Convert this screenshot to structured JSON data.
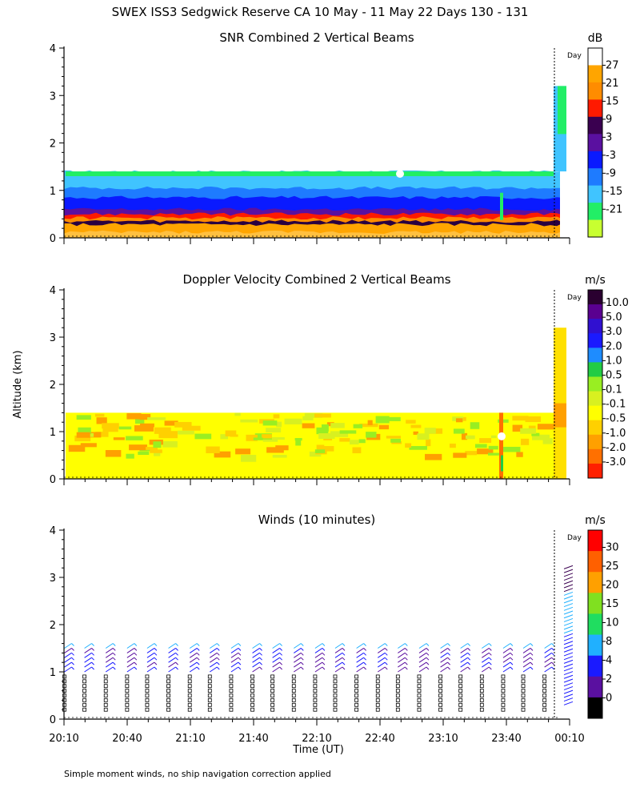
{
  "page": {
    "title": "SWEX ISS3 Sedgwick Reserve CA  10 May - 11 May 22 Days 130 - 131",
    "ylabel": "Altitude (km)",
    "xlabel": "Time (UT)",
    "footnote": "Simple moment winds, no ship navigation correction applied",
    "day_marker_label": "Day",
    "x_ticks": [
      "20:10",
      "20:40",
      "21:10",
      "21:40",
      "22:10",
      "22:40",
      "23:10",
      "23:40",
      "00:10"
    ],
    "y_ticks": [
      "0",
      "1",
      "2",
      "3",
      "4"
    ]
  },
  "chart_data": [
    {
      "type": "heatmap",
      "title": "SNR Combined 2 Vertical Beams",
      "colorbar_unit": "dB",
      "colorbar_labels": [
        "27",
        "21",
        "15",
        "9",
        "3",
        "-3",
        "-9",
        "-15",
        "-21"
      ],
      "colorbar_colors": [
        "#ffffff",
        "#ffa500",
        "#ff8c00",
        "#ff1a00",
        "#3a0050",
        "#5a10a0",
        "#0a1aff",
        "#1e7bff",
        "#40c4ff",
        "#22ee66",
        "#c8ff30"
      ],
      "xlim_hours": [
        20.1667,
        24.2
      ],
      "ylim_km": [
        0,
        4
      ],
      "data_top_km": 1.4,
      "layers_km": [
        {
          "top": 1.4,
          "color": "#40c4ff"
        },
        {
          "top": 1.05,
          "color": "#1e7bff"
        },
        {
          "top": 0.85,
          "color": "#0a1aff"
        },
        {
          "top": 0.6,
          "color": "#5a10a0"
        },
        {
          "top": 0.5,
          "color": "#ff1a00"
        },
        {
          "top": 0.42,
          "color": "#ff8c00"
        },
        {
          "top": 0.35,
          "color": "#2a0040"
        },
        {
          "top": 0.28,
          "color": "#ffa500"
        },
        {
          "top": 0.12,
          "color": "#ffc040"
        }
      ]
    },
    {
      "type": "heatmap",
      "title": "Doppler Velocity Combined 2 Vertical Beams",
      "colorbar_unit": "m/s",
      "colorbar_labels": [
        "10.0",
        "5.0",
        "3.0",
        "2.0",
        "1.0",
        "0.5",
        "0.1",
        "-0.1",
        "-0.5",
        "-1.0",
        "-2.0",
        "-3.0"
      ],
      "colorbar_colors": [
        "#2a0030",
        "#5a0090",
        "#3010d0",
        "#1a1aff",
        "#1e8cff",
        "#22cc44",
        "#99ee22",
        "#d8f020",
        "#ffff00",
        "#ffd000",
        "#ffa000",
        "#ff7000",
        "#ff2000"
      ],
      "xlim_hours": [
        20.1667,
        24.2
      ],
      "ylim_km": [
        0,
        4
      ],
      "data_top_km": 1.4,
      "base_value": "-0.1"
    },
    {
      "type": "scatter",
      "title": "Winds (10 minutes)",
      "colorbar_unit": "m/s",
      "colorbar_labels": [
        "30",
        "25",
        "20",
        "15",
        "10",
        "8",
        "4",
        "2",
        "0"
      ],
      "colorbar_colors": [
        "#ff0000",
        "#ff6000",
        "#ffa000",
        "#80e020",
        "#20dd60",
        "#20b0ff",
        "#1a1aff",
        "#5a10a0",
        "#000000"
      ],
      "xlim_hours": [
        20.1667,
        24.2
      ],
      "ylim_km": [
        0,
        4
      ],
      "profile_times_hours": [
        20.17,
        20.33,
        20.5,
        20.67,
        20.83,
        21.0,
        21.17,
        21.33,
        21.5,
        21.67,
        21.83,
        22.0,
        22.17,
        22.33,
        22.5,
        22.67,
        22.83,
        23.0,
        23.17,
        23.33,
        23.5,
        23.67,
        23.83,
        24.0
      ]
    }
  ]
}
